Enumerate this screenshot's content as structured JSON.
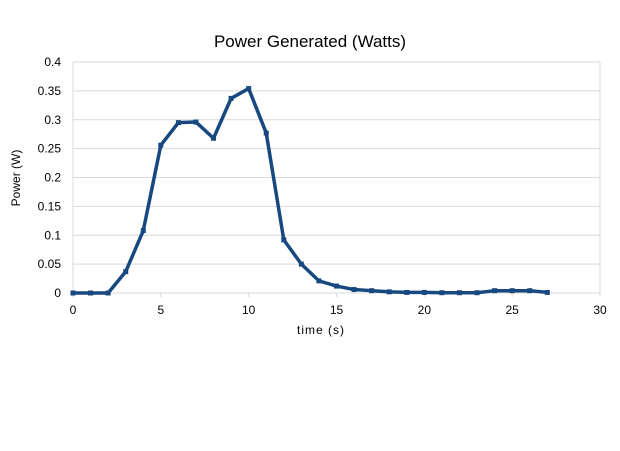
{
  "chart_data": {
    "type": "line",
    "title": "Power Generated (Watts)",
    "xlabel": "time (s)",
    "ylabel": "Power (W)",
    "xlim": [
      0,
      30
    ],
    "ylim": [
      0,
      0.4
    ],
    "xticks": [
      "0",
      "5",
      "10",
      "15",
      "20",
      "25",
      "30"
    ],
    "yticks": [
      "0",
      "0.05",
      "0.1",
      "0.15",
      "0.2",
      "0.25",
      "0.3",
      "0.35",
      "0.4"
    ],
    "grid": "horizontal",
    "legend": "none",
    "line_color": "#17487f",
    "x": [
      0,
      1,
      2,
      3,
      4,
      5,
      6,
      7,
      8,
      9,
      10,
      11,
      12,
      13,
      14,
      15,
      16,
      17,
      18,
      19,
      20,
      21,
      22,
      23,
      24,
      25,
      26,
      27
    ],
    "y": [
      0,
      0,
      0,
      0.037,
      0.108,
      0.256,
      0.295,
      0.296,
      0.268,
      0.337,
      0.354,
      0.277,
      0.092,
      0.05,
      0.021,
      0.012,
      0.006,
      0.004,
      0.002,
      0.001,
      0.001,
      0.0005,
      0.0005,
      0.0005,
      0.004,
      0.004,
      0.004,
      0.001
    ]
  }
}
